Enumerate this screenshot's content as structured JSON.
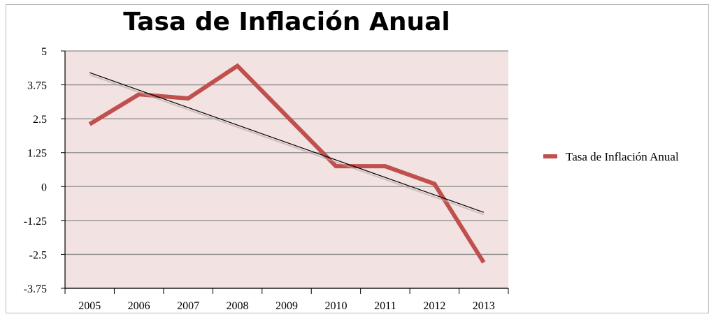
{
  "chart_data": {
    "type": "line",
    "title": "Tasa de Inflación Anual",
    "categories": [
      "2005",
      "2006",
      "2007",
      "2008",
      "2009",
      "2010",
      "2011",
      "2012",
      "2013"
    ],
    "series": [
      {
        "name": "Tasa de Inflación Anual",
        "values": [
          2.3,
          3.4,
          3.25,
          4.45,
          2.6,
          0.75,
          0.75,
          0.1,
          -2.8
        ],
        "color": "#c0504d"
      }
    ],
    "trendline": {
      "start": 4.2,
      "end": -0.95,
      "color": "#000000"
    },
    "yticks": [
      "5",
      "3.75",
      "2.5",
      "1.25",
      "0",
      "-1.25",
      "-2.5",
      "-3.75"
    ],
    "ylim": [
      -3.75,
      5
    ],
    "plot_background": "#f2e2e1",
    "gridline_color": "#8c8c8c",
    "legend": {
      "label": "Tasa de Inflación Anual",
      "position": "right"
    }
  }
}
